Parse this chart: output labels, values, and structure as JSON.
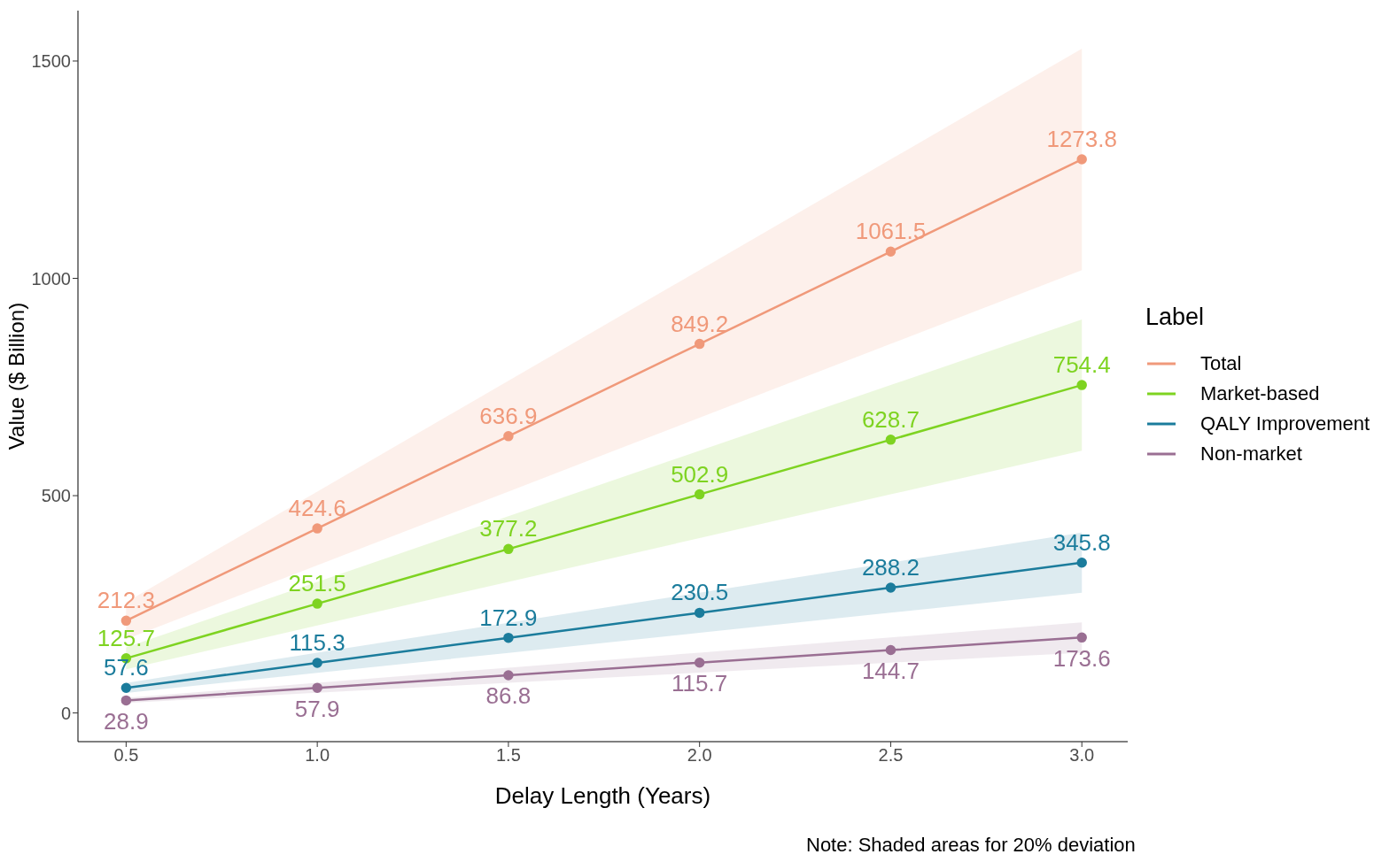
{
  "chart_data": {
    "type": "line",
    "xlabel": "Delay Length (Years)",
    "ylabel": "Value ($ Billion)",
    "legend_title": "Label",
    "legend": "right",
    "marker": "circle",
    "line_style": "solid",
    "grid": false,
    "data_labels": true,
    "x": [
      0.5,
      1.0,
      1.5,
      2.0,
      2.5,
      3.0
    ],
    "xlim": [
      0.374,
      3.12
    ],
    "xticks": [
      0.5,
      {
        "value": 1,
        "label": "1.0"
      },
      1.5,
      {
        "value": 2,
        "label": "2.0"
      },
      2.5,
      {
        "value": 3,
        "label": "3.0"
      }
    ],
    "ylim": [
      -66,
      1616
    ],
    "yticks": [
      0,
      500,
      1000,
      1500
    ],
    "series": [
      {
        "name": "Total",
        "color": "#f0997a",
        "values": [
          212.3,
          424.6,
          636.9,
          849.2,
          1061.5,
          1273.8
        ],
        "lower": [
          169.8,
          339.7,
          509.5,
          679.4,
          849.2,
          1019.0
        ],
        "upper": [
          254.8,
          509.5,
          764.3,
          1019.0,
          1273.8,
          1528.6
        ]
      },
      {
        "name": "Market-based",
        "color": "#7ed321",
        "values": [
          125.7,
          251.5,
          377.2,
          502.9,
          628.7,
          754.4
        ],
        "lower": [
          100.6,
          201.2,
          301.8,
          402.3,
          503.0,
          603.5
        ],
        "upper": [
          150.8,
          301.8,
          452.6,
          603.5,
          754.4,
          905.3
        ]
      },
      {
        "name": "QALY Improvement",
        "color": "#1b7c9c",
        "values": [
          57.6,
          115.3,
          172.9,
          230.5,
          288.2,
          345.8
        ],
        "lower": [
          46.1,
          92.2,
          138.3,
          184.4,
          230.6,
          276.6
        ],
        "upper": [
          69.1,
          138.4,
          207.5,
          276.6,
          345.8,
          415.0
        ]
      },
      {
        "name": "Non-market",
        "color": "#9a6f93",
        "values": [
          28.9,
          57.9,
          86.8,
          115.7,
          144.7,
          173.6
        ],
        "lower": [
          23.1,
          46.3,
          69.4,
          92.6,
          115.8,
          138.9
        ],
        "upper": [
          34.7,
          69.5,
          104.2,
          138.8,
          173.6,
          208.3
        ]
      }
    ],
    "annotations": [
      "Note: Shaded areas for 20% deviation"
    ]
  }
}
